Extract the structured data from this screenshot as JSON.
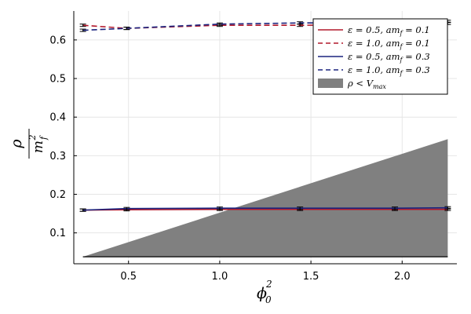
{
  "chart_data": {
    "type": "line",
    "title": "",
    "xlabel": "ϕ₀²",
    "ylabel": "ρ / m_f²",
    "ylabel_num": "ρ",
    "ylabel_den": "m",
    "ylabel_den_sub": "f",
    "ylabel_den_sup": "2",
    "xlabel_base": "ϕ",
    "xlabel_sub": "0",
    "xlabel_sup": "2",
    "xlim": [
      0.2,
      2.3
    ],
    "ylim": [
      0.02,
      0.675
    ],
    "xticks": [
      0.5,
      1.0,
      1.5,
      2.0
    ],
    "xtick_labels": [
      "0.5",
      "1.0",
      "1.5",
      "2.0"
    ],
    "yticks": [
      0.1,
      0.2,
      0.3,
      0.4,
      0.5,
      0.6
    ],
    "ytick_labels": [
      "0.1",
      "0.2",
      "0.3",
      "0.4",
      "0.5",
      "0.6"
    ],
    "grid": true,
    "legend_position": "top-right",
    "series": [
      {
        "name": "ε = 0.5, am_f = 0.1",
        "color": "#b2182b",
        "dash": "solid",
        "x": [
          0.25,
          0.49,
          1.0,
          1.44,
          1.96,
          2.25
        ],
        "y": [
          0.159,
          0.16,
          0.161,
          0.161,
          0.161,
          0.161
        ]
      },
      {
        "name": "ε = 1.0, am_f = 0.1",
        "color": "#b2182b",
        "dash": "dashed",
        "x": [
          0.25,
          0.49,
          1.0,
          1.44,
          1.96,
          2.25
        ],
        "y": [
          0.638,
          0.63,
          0.638,
          0.638,
          0.64,
          0.643
        ]
      },
      {
        "name": "ε = 0.5, am_f = 0.3",
        "color": "#1a237e",
        "dash": "solid",
        "x": [
          0.25,
          0.49,
          1.0,
          1.44,
          1.96,
          2.25
        ],
        "y": [
          0.159,
          0.163,
          0.164,
          0.164,
          0.164,
          0.165
        ]
      },
      {
        "name": "ε = 1.0, am_f = 0.3",
        "color": "#1a237e",
        "dash": "dashed",
        "x": [
          0.25,
          0.49,
          1.0,
          1.44,
          1.96,
          2.25
        ],
        "y": [
          0.625,
          0.63,
          0.641,
          0.644,
          0.645,
          0.648
        ]
      }
    ],
    "band": {
      "name": "ρ < V_max",
      "color": "#808080",
      "x": [
        0.25,
        2.25
      ],
      "y_lower": [
        0.038,
        0.038
      ],
      "y_upper": [
        0.038,
        0.343
      ]
    },
    "legend_entries": [
      {
        "prefix": "ε = 0.5, am",
        "sub": "f",
        "suffix": " = 0.1"
      },
      {
        "prefix": "ε = 1.0, am",
        "sub": "f",
        "suffix": " = 0.1"
      },
      {
        "prefix": "ε = 0.5, am",
        "sub": "f",
        "suffix": " = 0.3"
      },
      {
        "prefix": "ε = 1.0, am",
        "sub": "f",
        "suffix": " = 0.3"
      },
      {
        "prefix": "ρ < V",
        "sub": "max",
        "suffix": ""
      }
    ]
  }
}
